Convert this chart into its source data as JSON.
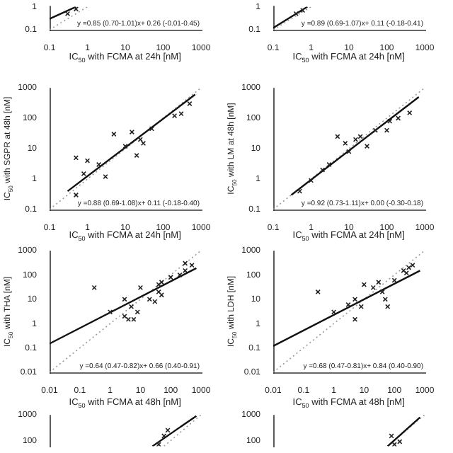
{
  "chart_data": [
    {
      "type": "scatter",
      "xlabel": "IC$_{50}$ with FCMA at 24h [nM]",
      "annotations": [
        "y =0.85 (0.70-1.01)x+ 0.26 (-0.01-0.45)"
      ],
      "log": "xy",
      "xlim": [
        0.1,
        1000
      ],
      "ylim": [
        0.1,
        1
      ],
      "xticks": [
        0.1,
        1,
        10,
        100,
        1000
      ],
      "yticks": [
        0.1,
        1
      ],
      "series": [
        {
          "type": "scatter",
          "marker": "cross",
          "color": "#222222",
          "x": [
            0.3,
            0.5
          ],
          "values": [
            0.5,
            0.8
          ]
        },
        {
          "type": "line",
          "color": "#111111",
          "line_style": "solid",
          "x": [
            0.1,
            0.5
          ],
          "values": [
            0.3,
            1
          ]
        },
        {
          "type": "line",
          "color": "#999999",
          "line_style": "dotted",
          "x": [
            0.1,
            1
          ],
          "values": [
            0.1,
            1
          ]
        }
      ]
    },
    {
      "type": "scatter",
      "xlabel": "IC$_{50}$ with FCMA at 24h [nM]",
      "annotations": [
        "y =0.89 (0.69-1.07)x+ 0.11 (-0.18-0.41)"
      ],
      "log": "xy",
      "xlim": [
        0.1,
        1000
      ],
      "ylim": [
        0.1,
        1
      ],
      "xticks": [
        0.1,
        1,
        10,
        100,
        1000
      ],
      "yticks": [
        0.1,
        1
      ],
      "series": [
        {
          "type": "scatter",
          "marker": "cross",
          "color": "#222222",
          "x": [
            0.4,
            0.6
          ],
          "values": [
            0.5,
            0.7
          ]
        },
        {
          "type": "line",
          "color": "#111111",
          "line_style": "solid",
          "x": [
            0.1,
            0.8
          ],
          "values": [
            0.12,
            1
          ]
        },
        {
          "type": "line",
          "color": "#999999",
          "line_style": "dotted",
          "x": [
            0.1,
            1
          ],
          "values": [
            0.1,
            1
          ]
        }
      ]
    },
    {
      "type": "scatter",
      "xlabel": "IC$_{50}$ with FCMA at 24h [nM]",
      "ylabel": "IC$_{50}$ with SGPR at 48h [nM]",
      "annotations": [
        "y =0.88 (0.69-1.08)x+ 0.11 (-0.18-0.40)"
      ],
      "log": "xy",
      "xlim": [
        0.1,
        1000
      ],
      "ylim": [
        0.1,
        1000
      ],
      "xticks": [
        0.1,
        1,
        10,
        100,
        1000
      ],
      "yticks": [
        0.1,
        1,
        10,
        100,
        1000
      ],
      "series": [
        {
          "type": "scatter",
          "marker": "cross",
          "color": "#222222",
          "x": [
            0.5,
            0.5,
            1,
            0.8,
            3,
            5,
            10,
            15,
            20,
            25,
            30,
            50,
            200,
            300,
            500,
            2
          ],
          "values": [
            0.3,
            5,
            4,
            1.5,
            1.2,
            30,
            12,
            35,
            6,
            20,
            15,
            45,
            120,
            140,
            300,
            3
          ]
        },
        {
          "type": "line",
          "color": "#111111",
          "line_style": "solid",
          "x": [
            0.3,
            700
          ],
          "values": [
            0.4,
            600
          ]
        },
        {
          "type": "line",
          "color": "#999999",
          "line_style": "dotted",
          "x": [
            0.1,
            1000
          ],
          "values": [
            0.1,
            1000
          ]
        }
      ]
    },
    {
      "type": "scatter",
      "xlabel": "IC$_{50}$ with FCMA at 24h [nM]",
      "ylabel": "IC$_{50}$ with LM at 48h [nM]",
      "annotations": [
        "y =0.92 (0.73-1.11)x+ 0.00 (-0.30-0.18)"
      ],
      "log": "xy",
      "xlim": [
        0.1,
        1000
      ],
      "ylim": [
        0.1,
        1000
      ],
      "xticks": [
        0.1,
        1,
        10,
        100,
        1000
      ],
      "yticks": [
        0.1,
        1,
        10,
        100,
        1000
      ],
      "series": [
        {
          "type": "scatter",
          "marker": "cross",
          "color": "#222222",
          "x": [
            0.5,
            1,
            2,
            5,
            8,
            15,
            20,
            30,
            50,
            100,
            120,
            200,
            400,
            3,
            10
          ],
          "values": [
            0.4,
            0.9,
            2,
            25,
            15,
            20,
            25,
            12,
            40,
            40,
            80,
            100,
            150,
            3,
            8
          ]
        },
        {
          "type": "line",
          "color": "#111111",
          "line_style": "solid",
          "x": [
            0.3,
            700
          ],
          "values": [
            0.3,
            500
          ]
        },
        {
          "type": "line",
          "color": "#999999",
          "line_style": "dotted",
          "x": [
            0.1,
            1000
          ],
          "values": [
            0.1,
            1000
          ]
        }
      ]
    },
    {
      "type": "scatter",
      "xlabel": "IC$_{50}$ with FCMA at 48h [nM]",
      "ylabel": "IC$_{50}$ with THA [nM]",
      "annotations": [
        "y =0.64 (0.47-0.82)x+ 0.66 (0.40-0.91)"
      ],
      "log": "xy",
      "xlim": [
        0.01,
        1000
      ],
      "ylim": [
        0.01,
        1000
      ],
      "xticks": [
        0.01,
        0.1,
        1,
        10,
        100,
        1000
      ],
      "yticks": [
        0.01,
        0.1,
        1,
        10,
        100,
        1000
      ],
      "series": [
        {
          "type": "scatter",
          "marker": "cross",
          "color": "#222222",
          "x": [
            0.3,
            1,
            3,
            3,
            5,
            4,
            6,
            8,
            10,
            20,
            30,
            40,
            50,
            40,
            100,
            200,
            300,
            300,
            500,
            50
          ],
          "values": [
            30,
            3,
            10,
            2,
            5,
            1.5,
            1.5,
            3,
            30,
            10,
            8,
            20,
            50,
            40,
            80,
            100,
            300,
            150,
            250,
            15
          ]
        },
        {
          "type": "line",
          "color": "#111111",
          "line_style": "solid",
          "x": [
            0.01,
            700
          ],
          "values": [
            0.15,
            190
          ]
        },
        {
          "type": "line",
          "color": "#999999",
          "line_style": "dotted",
          "x": [
            0.01,
            1000
          ],
          "values": [
            0.01,
            1000
          ]
        }
      ]
    },
    {
      "type": "scatter",
      "xlabel": "IC$_{50}$ with FCMA at 48h [nM]",
      "ylabel": "IC$_{50}$ with LDH [nM]",
      "annotations": [
        "y =0.68 (0.47-0.81)x+ 0.84 (0.40-0.90)"
      ],
      "log": "xy",
      "xlim": [
        0.01,
        1000
      ],
      "ylim": [
        0.01,
        1000
      ],
      "xticks": [
        0.01,
        0.1,
        1,
        10,
        100,
        1000
      ],
      "yticks": [
        0.01,
        0.1,
        1,
        10,
        100,
        1000
      ],
      "series": [
        {
          "type": "scatter",
          "marker": "cross",
          "color": "#222222",
          "x": [
            0.3,
            1,
            3,
            5,
            5,
            8,
            10,
            20,
            30,
            40,
            50,
            60,
            100,
            200,
            300,
            400,
            250
          ],
          "values": [
            20,
            3,
            6,
            10,
            1.5,
            5,
            40,
            30,
            50,
            20,
            10,
            5,
            60,
            150,
            200,
            250,
            120
          ]
        },
        {
          "type": "line",
          "color": "#111111",
          "line_style": "solid",
          "x": [
            0.01,
            700
          ],
          "values": [
            0.12,
            150
          ]
        },
        {
          "type": "line",
          "color": "#999999",
          "line_style": "dotted",
          "x": [
            0.01,
            1000
          ],
          "values": [
            0.01,
            1000
          ]
        }
      ]
    },
    {
      "type": "scatter",
      "log": "xy",
      "tick_labels": "y",
      "xlim": [
        0.01,
        1000
      ],
      "ylim": [
        60,
        1000
      ],
      "yticks": [
        100,
        1000
      ],
      "series": [
        {
          "type": "scatter",
          "marker": "cross",
          "color": "#222222",
          "x": [
            40,
            60,
            80
          ],
          "values": [
            70,
            150,
            250
          ]
        },
        {
          "type": "line",
          "color": "#111111",
          "line_style": "solid",
          "x": [
            25,
            700
          ],
          "values": [
            60,
            900
          ]
        },
        {
          "type": "line",
          "color": "#999999",
          "line_style": "dotted",
          "x": [
            60,
            1000
          ],
          "values": [
            60,
            1000
          ]
        }
      ]
    },
    {
      "type": "scatter",
      "log": "xy",
      "tick_labels": "y",
      "xlim": [
        0.01,
        1000
      ],
      "ylim": [
        60,
        1000
      ],
      "yticks": [
        100,
        1000
      ],
      "series": [
        {
          "type": "scatter",
          "marker": "cross",
          "color": "#222222",
          "x": [
            80,
            100,
            150
          ],
          "values": [
            150,
            70,
            90
          ]
        },
        {
          "type": "line",
          "color": "#111111",
          "line_style": "solid",
          "x": [
            60,
            700
          ],
          "values": [
            60,
            800
          ]
        },
        {
          "type": "line",
          "color": "#999999",
          "line_style": "dotted",
          "x": [
            60,
            1000
          ],
          "values": [
            60,
            1000
          ]
        }
      ]
    }
  ]
}
